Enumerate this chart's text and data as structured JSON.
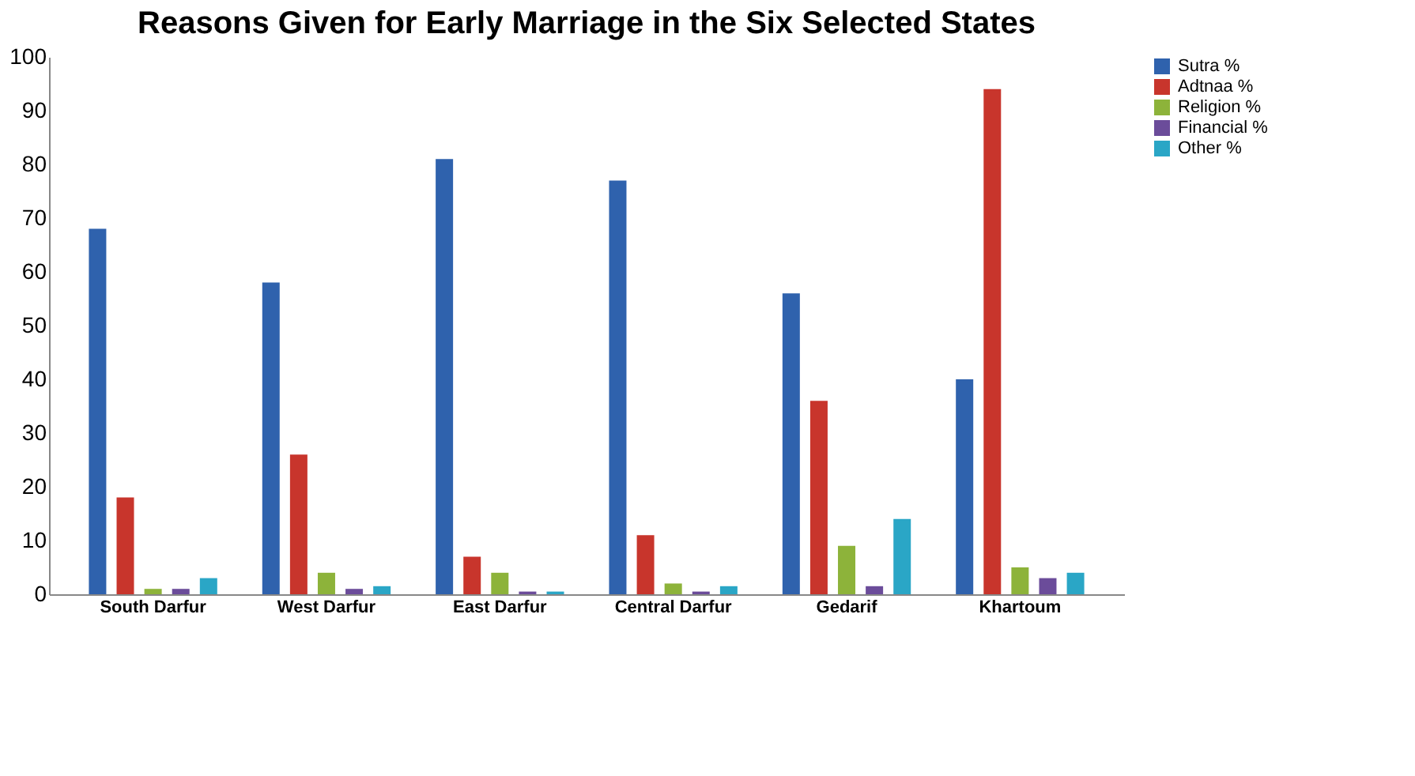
{
  "chart_data": {
    "type": "bar",
    "title": "Reasons Given for Early Marriage in the Six Selected States",
    "categories": [
      "South Darfur",
      "West Darfur",
      "East Darfur",
      "Central Darfur",
      "Gedarif",
      "Khartoum"
    ],
    "series": [
      {
        "name": "Sutra %",
        "color": "#2f62ad",
        "values": [
          68,
          58,
          81,
          77,
          56,
          40
        ]
      },
      {
        "name": "Adtnaa %",
        "color": "#c8352c",
        "values": [
          18,
          26,
          7,
          11,
          36,
          94
        ]
      },
      {
        "name": "Religion %",
        "color": "#8db33a",
        "values": [
          1,
          4,
          4,
          2,
          9,
          5
        ]
      },
      {
        "name": "Financial %",
        "color": "#6b4c9a",
        "values": [
          1,
          1,
          0.5,
          0.5,
          1.5,
          3
        ]
      },
      {
        "name": "Other %",
        "color": "#2aa6c6",
        "values": [
          3,
          1.5,
          0.5,
          1.5,
          14,
          4
        ]
      }
    ],
    "ylim": [
      0,
      100
    ],
    "yticks": [
      0,
      10,
      20,
      30,
      40,
      50,
      60,
      70,
      80,
      90,
      100
    ],
    "grid": false,
    "legend": "right"
  }
}
